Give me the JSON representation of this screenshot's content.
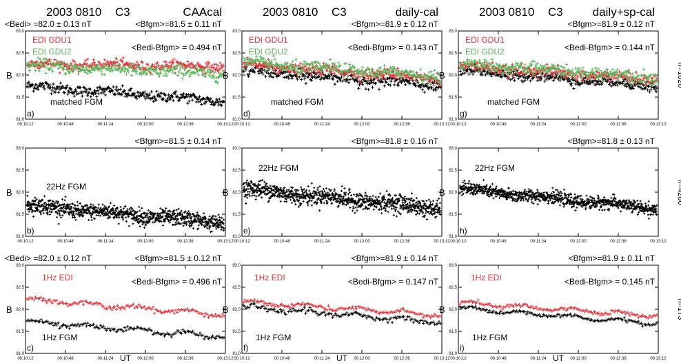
{
  "figure": {
    "columns": [
      {
        "id": "caa",
        "title_date": "2003 0810",
        "title_sc": "C3",
        "title_cal": "CAAcal"
      },
      {
        "id": "daily",
        "title_date": "2003 0810",
        "title_sc": "C3",
        "title_cal": "daily-cal"
      },
      {
        "id": "dsp",
        "title_date": "2003 0810",
        "title_sc": "C3",
        "title_cal": "daily+sp-cal"
      }
    ],
    "y_axis_label": "B",
    "x_axis_label": "UT",
    "side_labels": [
      "n=1020",
      "n=4260",
      "n=173"
    ]
  },
  "colors": {
    "gdu1": "#e8323a",
    "gdu2": "#5cb85c",
    "fgm": "#000000",
    "edi1hz": "#e8323a"
  },
  "chart_data": [
    {
      "id": "a",
      "type": "scatter",
      "panel_label": "a)",
      "column": "CAAcal",
      "row": 1,
      "stats_left": "<Bedi> =82.0 ± 0.13 nT",
      "stats_right": "<Bfgm>=81.5 ± 0.11 nT",
      "diff": "<Bedi-Bfgm> = 0.494 nT",
      "series": [
        {
          "name": "EDI GDU1",
          "kind": "gdu1",
          "mean": 82.22,
          "slope": -0.05,
          "spread": 0.055
        },
        {
          "name": "EDI GDU2",
          "kind": "gdu2",
          "mean": 82.12,
          "slope": -0.18,
          "spread": 0.07
        },
        {
          "name": "matched FGM",
          "kind": "fgm",
          "mean": 81.58,
          "slope": -0.35,
          "spread": 0.06
        }
      ],
      "ylim": [
        81.0,
        83.0
      ],
      "yticks": [
        "81.0",
        "81.5",
        "82.0",
        "82.5",
        "83.0"
      ],
      "xticks": [
        "00:10:12",
        "00:10:48",
        "00:11:24",
        "00:12:00",
        "00:12:36",
        "00:13:12"
      ]
    },
    {
      "id": "b",
      "type": "scatter",
      "panel_label": "b)",
      "column": "CAAcal",
      "row": 2,
      "stats_left": "",
      "stats_right": "<Bfgm>=81.5 ± 0.14 nT",
      "diff": "",
      "series": [
        {
          "name": "22Hz FGM",
          "kind": "fgm",
          "mean": 81.5,
          "slope": -0.4,
          "spread": 0.09
        }
      ],
      "ylim": [
        81.0,
        83.0
      ],
      "yticks": [
        "81.0",
        "81.5",
        "82.0",
        "82.5",
        "83.0"
      ],
      "xticks": [
        "00:10:12",
        "00:10:48",
        "00:11:24",
        "00:12:00",
        "00:12:36",
        "00:13:12"
      ]
    },
    {
      "id": "c",
      "type": "scatter",
      "panel_label": "c)",
      "column": "CAAcal",
      "row": 3,
      "stats_left": "<Bedi> =82.0 ± 0.12 nT",
      "stats_right": "<Bfgm>=81.5 ± 0.12 nT",
      "diff": "<Bedi-Bfgm> = 0.496 nT",
      "series": [
        {
          "name": "1Hz EDI",
          "kind": "edi1hz",
          "mean": 82.05,
          "slope": -0.35,
          "spread": 0.04
        },
        {
          "name": "1Hz FGM",
          "kind": "fgm",
          "mean": 81.55,
          "slope": -0.35,
          "spread": 0.04
        }
      ],
      "ylim": [
        81.0,
        83.0
      ],
      "yticks": [
        "81.0",
        "81.5",
        "82.0",
        "82.5",
        "83.0"
      ],
      "xticks": [
        "00:10:12",
        "00:10:48",
        "00:11:24",
        "00:12:00",
        "00:12:36",
        "00:13:12"
      ]
    },
    {
      "id": "d",
      "type": "scatter",
      "panel_label": "d)",
      "column": "daily-cal",
      "row": 1,
      "stats_left": "",
      "stats_right": "<Bfgm>=81.9 ± 0.12 nT",
      "diff": "<Bedi-Bfgm> = 0.143 nT",
      "series": [
        {
          "name": "EDI GDU1",
          "kind": "gdu1",
          "mean": 82.08,
          "slope": -0.3,
          "spread": 0.06
        },
        {
          "name": "EDI GDU2",
          "kind": "gdu2",
          "mean": 82.12,
          "slope": -0.3,
          "spread": 0.07
        },
        {
          "name": "matched FGM",
          "kind": "fgm",
          "mean": 81.93,
          "slope": -0.35,
          "spread": 0.07
        }
      ],
      "ylim": [
        81.0,
        83.0
      ],
      "yticks": [
        "81.0",
        "81.5",
        "82.0",
        "82.5",
        "83.0"
      ],
      "xticks": [
        "00:10:12",
        "00:10:48",
        "00:11:24",
        "00:12:00",
        "00:12:36",
        "00:13:12"
      ]
    },
    {
      "id": "e",
      "type": "scatter",
      "panel_label": "e)",
      "column": "daily-cal",
      "row": 2,
      "stats_left": "",
      "stats_right": "<Bfgm>=81.8 ± 0.16 nT",
      "diff": "",
      "series": [
        {
          "name": "22Hz FGM",
          "kind": "fgm",
          "mean": 81.85,
          "slope": -0.45,
          "spread": 0.1
        }
      ],
      "ylim": [
        81.0,
        83.0
      ],
      "yticks": [
        "81.0",
        "81.5",
        "82.0",
        "82.5",
        "83.0"
      ],
      "xticks": [
        "00:10:12",
        "00:10:48",
        "00:11:24",
        "00:12:00",
        "00:12:36",
        "00:13:12"
      ]
    },
    {
      "id": "f",
      "type": "scatter",
      "panel_label": "f)",
      "column": "daily-cal",
      "row": 3,
      "stats_left": "",
      "stats_right": "<Bfgm>=81.9 ± 0.14 nT",
      "diff": "<Bedi-Bfgm> = 0.147 nT",
      "series": [
        {
          "name": "1Hz EDI",
          "kind": "edi1hz",
          "mean": 82.02,
          "slope": -0.3,
          "spread": 0.035
        },
        {
          "name": "1Hz FGM",
          "kind": "fgm",
          "mean": 81.88,
          "slope": -0.35,
          "spread": 0.05
        }
      ],
      "ylim": [
        81.0,
        83.0
      ],
      "yticks": [
        "81.0",
        "81.5",
        "82.0",
        "82.5",
        "83.0"
      ],
      "xticks": [
        "00:10:12",
        "00:10:48",
        "00:11:24",
        "00:12:00",
        "00:12:36",
        "00:13:12"
      ]
    },
    {
      "id": "g",
      "type": "scatter",
      "panel_label": "g)",
      "column": "daily+sp-cal",
      "row": 1,
      "stats_left": "",
      "stats_right": "<Bfgm>=81.9 ± 0.12 nT",
      "diff": "<Bedi-Bfgm> = 0.144 nT",
      "series": [
        {
          "name": "EDI GDU1",
          "kind": "gdu1",
          "mean": 82.05,
          "slope": -0.3,
          "spread": 0.06
        },
        {
          "name": "EDI GDU2",
          "kind": "gdu2",
          "mean": 82.1,
          "slope": -0.3,
          "spread": 0.07
        },
        {
          "name": "matched FGM",
          "kind": "fgm",
          "mean": 81.93,
          "slope": -0.35,
          "spread": 0.06
        }
      ],
      "ylim": [
        81.0,
        83.0
      ],
      "yticks": [
        "81.0",
        "81.5",
        "82.0",
        "82.5",
        "83.0"
      ],
      "xticks": [
        "00:10:12",
        "00:10:48",
        "00:11:24",
        "00:12:00",
        "00:12:36",
        "00:13:12"
      ]
    },
    {
      "id": "h",
      "type": "scatter",
      "panel_label": "h)",
      "column": "daily+sp-cal",
      "row": 2,
      "stats_left": "",
      "stats_right": "<Bfgm>=81.8 ± 0.13 nT",
      "diff": "",
      "series": [
        {
          "name": "22Hz FGM",
          "kind": "fgm",
          "mean": 81.85,
          "slope": -0.45,
          "spread": 0.07
        }
      ],
      "ylim": [
        81.0,
        83.0
      ],
      "yticks": [
        "81.0",
        "81.5",
        "82.0",
        "82.5",
        "83.0"
      ],
      "xticks": [
        "00:10:12",
        "00:10:48",
        "00:11:24",
        "00:12:00",
        "00:12:36",
        "00:13:12"
      ]
    },
    {
      "id": "i",
      "type": "scatter",
      "panel_label": "i)",
      "column": "daily+sp-cal",
      "row": 3,
      "stats_left": "",
      "stats_right": "<Bfgm>=81.9 ± 0.11 nT",
      "diff": "<Bedi-Bfgm> = 0.145 nT",
      "series": [
        {
          "name": "1Hz EDI",
          "kind": "edi1hz",
          "mean": 82.0,
          "slope": -0.3,
          "spread": 0.035
        },
        {
          "name": "1Hz FGM",
          "kind": "fgm",
          "mean": 81.85,
          "slope": -0.35,
          "spread": 0.03
        }
      ],
      "ylim": [
        81.0,
        83.0
      ],
      "yticks": [
        "81.0",
        "81.5",
        "82.0",
        "82.5",
        "83.0"
      ],
      "xticks": [
        "00:10:12",
        "00:10:48",
        "00:11:24",
        "00:12:00",
        "00:12:36",
        "00:13:12"
      ]
    }
  ]
}
